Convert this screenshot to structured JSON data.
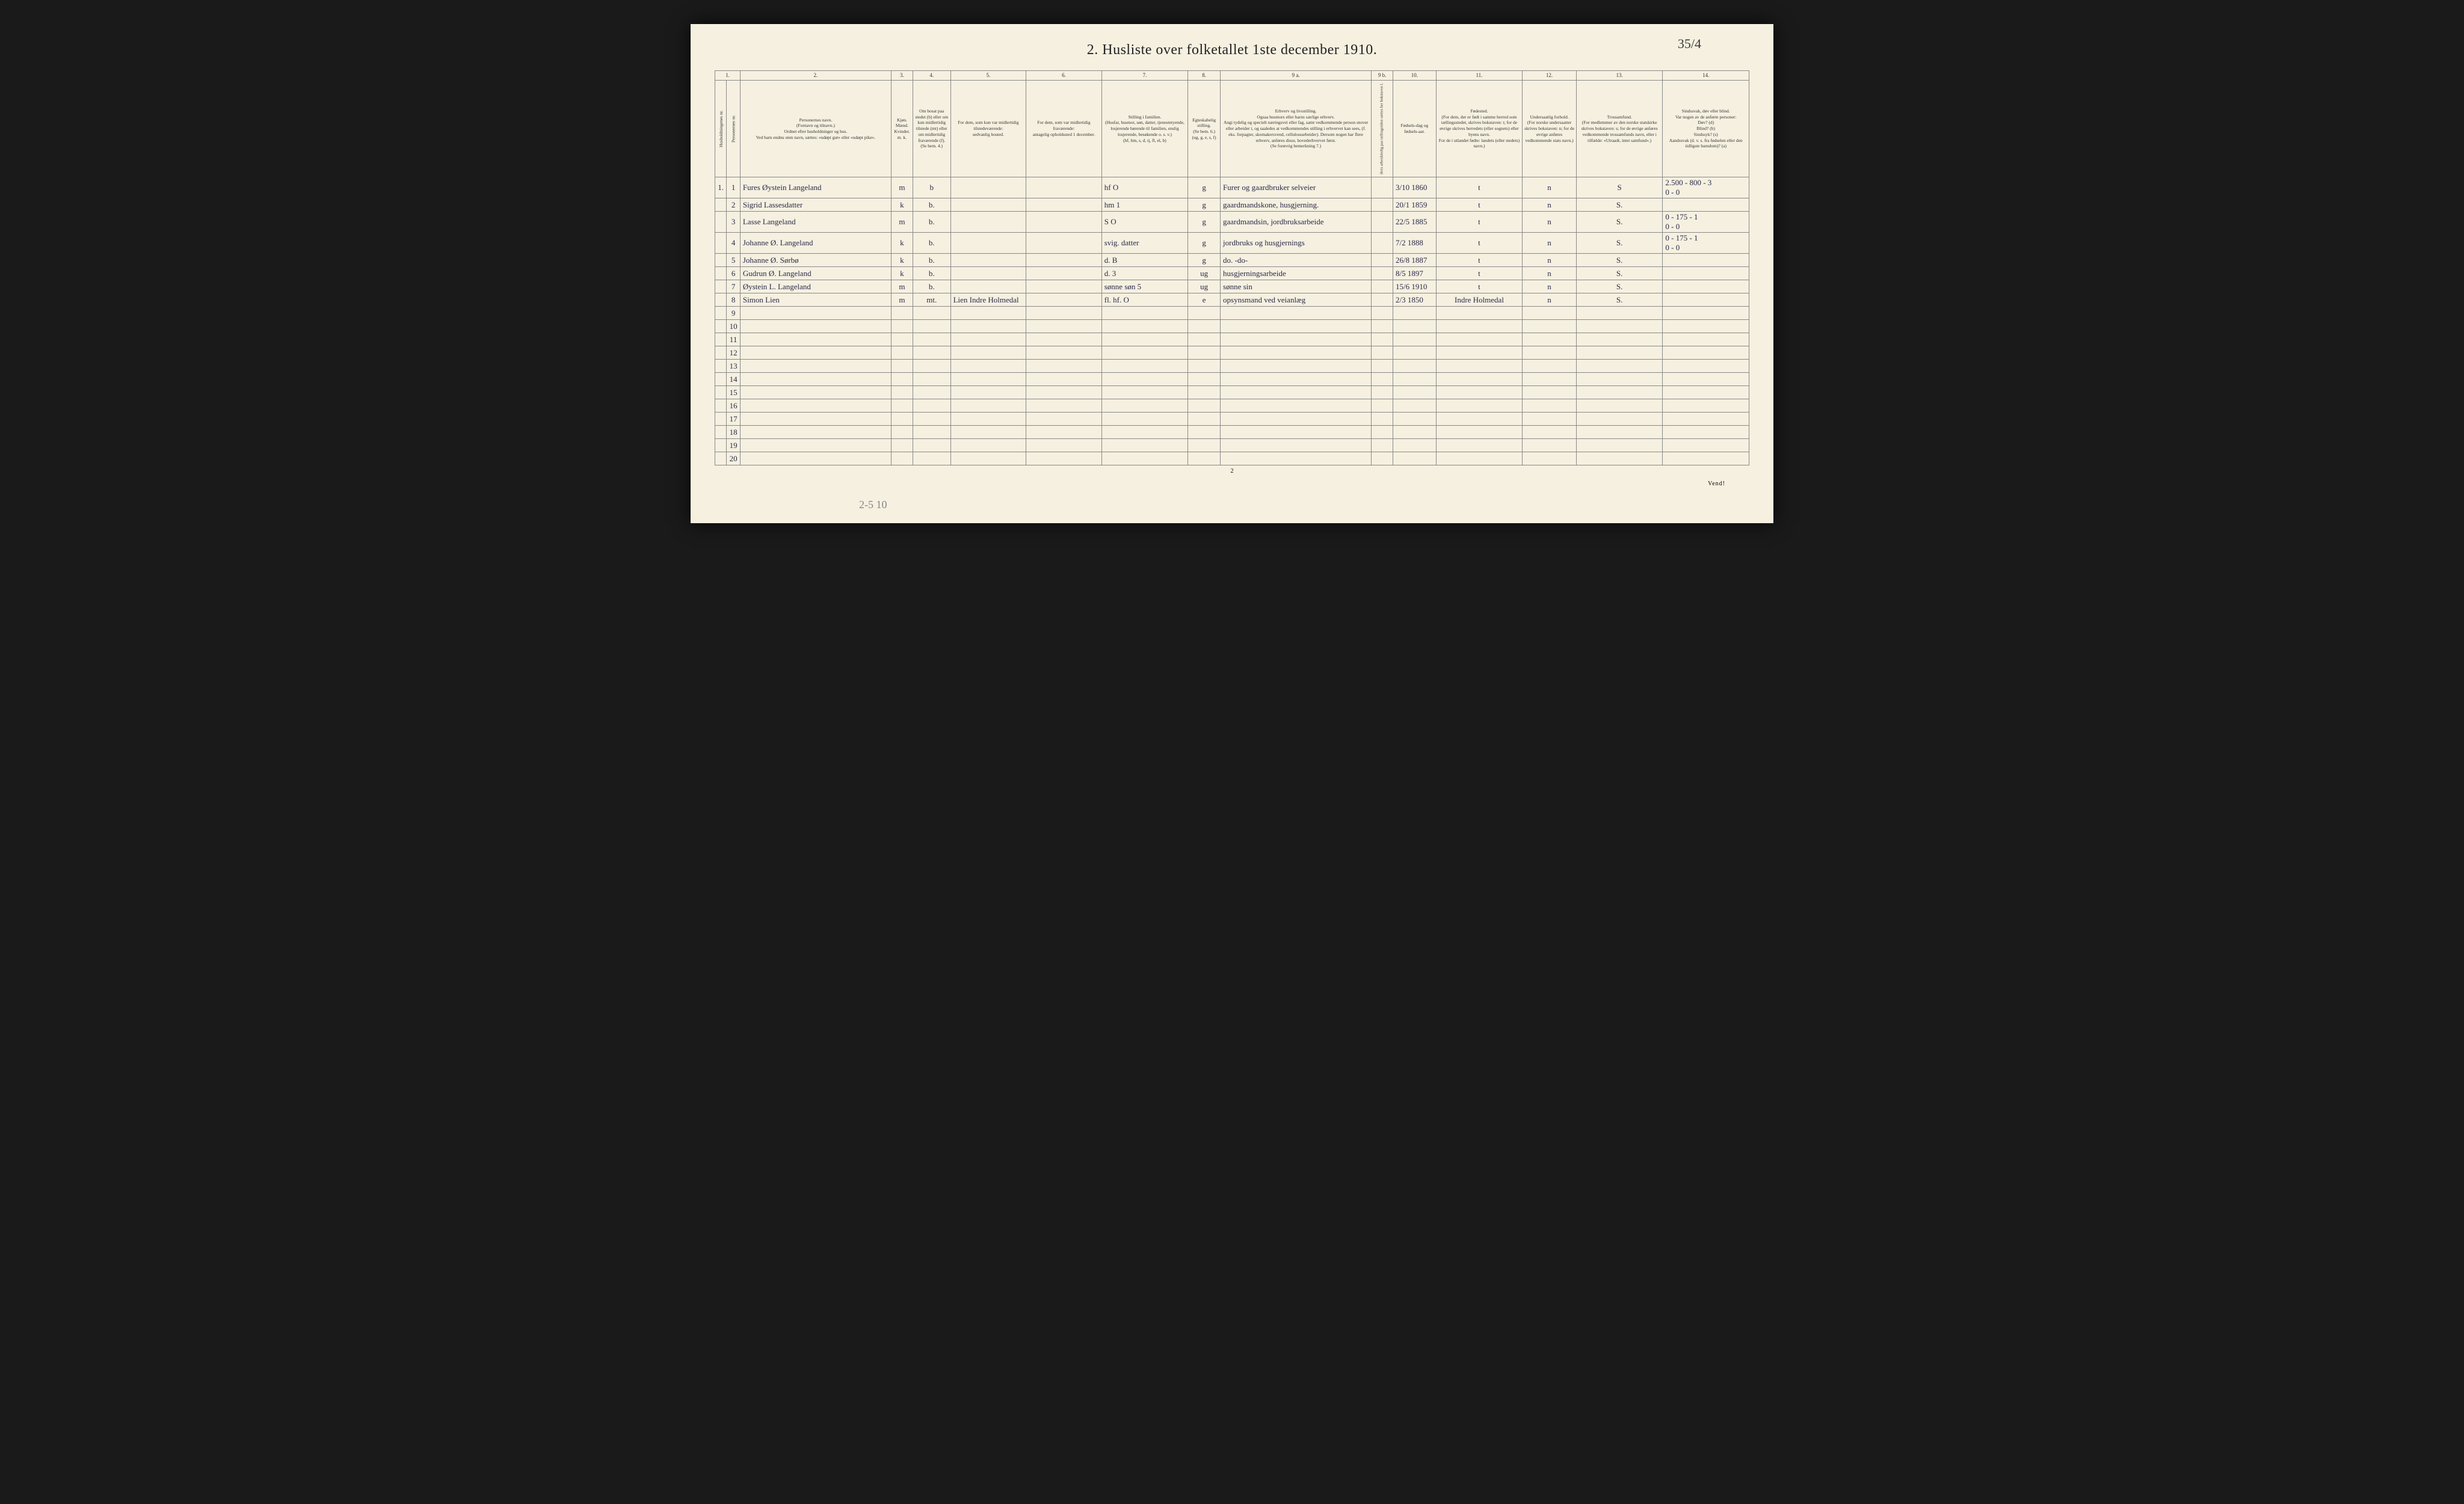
{
  "title": "2.  Husliste over folketallet 1ste december 1910.",
  "pageAnnotation": "35/4",
  "pencilNote": "2-5    10",
  "bottomRight": "Vend!",
  "pageNumBottom": "2",
  "columnNumbers": [
    "1.",
    "2.",
    "3.",
    "4.",
    "5.",
    "6.",
    "7.",
    "8.",
    "9 a.",
    "9 b.",
    "10.",
    "11.",
    "12.",
    "13.",
    "14."
  ],
  "headers": {
    "c1": "Husholdningenes nr.",
    "c1b": "Personernes nr.",
    "c2": "Personernes navn.\n(Fornavn og tilnavn.)\nOrdnet efter husholdninger og hus.\nVed barn endnu uten navn, sættes: «udøpt gut» eller «udøpt pike».",
    "c3": "Kjøn.\nMænd.\nKvinder.\nm.  k.",
    "c4": "Om bosat paa stedet (b) eller om kun midlertidig tilstede (mt) eller om midlertidig fraværende (f).\n(Se bem. 4.)",
    "c5": "For dem, som kun var midlertidig tilstedeværende:\nsedvanlig bosted.",
    "c6": "For dem, som var midlertidig fraværende:\nantagelig opholdssted 1 december.",
    "c7": "Stilling i familien.\n(Husfar, husmor, søn, datter, tjenestetyende, losjerende hørende til familien, enslig losjerende, besøkende o. s. v.)\n(hf, hm, s, d, tj, fl, el, b)",
    "c8": "Egteskabelig stilling.\n(Se bem. 6.)\n(ug, g, e, s, f)",
    "c9a": "Erhverv og livsstilling.\nOgsaa husmors eller barns særlige erhverv.\nAngi tydelig og specielt næringsvei eller fag, samt vedkommende person utover eller arbeider i, og saaledes at vedkommendes stilling i erhvervet kan sees, (f. eks. forpagter, skomakersvend, cellulosearbeider). Dersom nogen har flere erhverv, anføres disse, hovederhvervet først.\n(Se forøvrig bemerkning 7.)",
    "c9b": "Hvis arbeidsledig paa tællingstiden sættes her bokstaven l.",
    "c10": "Fødsels-dag og fødsels-aar.",
    "c11": "Fødested.\n(For dem, der er født i samme herred som tællingsstedet, skrives bokstaven: t; for de øvrige skrives herredets (eller sognets) eller byens navn.\nFor de i utlandet fødte: landets (eller stedets) navn.)",
    "c12": "Undersaatlig forhold.\n(For norske undersaatter skrives bokstaven: n; for de øvrige anføres vedkommende stats navn.)",
    "c13": "Trossamfund.\n(For medlemmer av den norske statskirke skrives bokstaven: s; for de øvrige anføres vedkommende trossamfunds navn, eller i tilfælde: «Utraadt, intet samfund».)",
    "c14": "Sindssvak, døv eller blind.\nVar nogen av de anførte personer:\nDøv?     (d)\nBlind?   (b)\nSindssyk? (s)\nAandssvak (d. v. s. fra fødselen eller den tidligste barndom)? (a)"
  },
  "rows": [
    {
      "hnr": "1.",
      "pnr": "1",
      "name": "Fures Øystein Langeland",
      "sex": "m",
      "res": "b",
      "away": "",
      "absent": "",
      "famrel": "hf     O",
      "mar": "g",
      "occ": "Furer og gaardbruker selveier",
      "led": "",
      "birth": "3/10 1860",
      "place": "t",
      "nat": "n",
      "rel": "S",
      "note": "2.500 - 800 - 3\n0 - 0"
    },
    {
      "hnr": "",
      "pnr": "2",
      "name": "Sigrid Lassesdatter",
      "sex": "k",
      "res": "b.",
      "away": "",
      "absent": "",
      "famrel": "hm   1",
      "mar": "g",
      "occ": "gaardmandskone, husgjerning.",
      "led": "",
      "birth": "20/1 1859",
      "place": "t",
      "nat": "n",
      "rel": "S.",
      "note": ""
    },
    {
      "hnr": "",
      "pnr": "3",
      "name": "Lasse Langeland",
      "sex": "m",
      "res": "b.",
      "away": "",
      "absent": "",
      "famrel": "S    O",
      "mar": "g",
      "occ": "gaardmandsin, jordbruksarbeide",
      "led": "",
      "birth": "22/5 1885",
      "place": "t",
      "nat": "n",
      "rel": "S.",
      "note": "0 - 175 - 1\n0 - 0"
    },
    {
      "hnr": "",
      "pnr": "4",
      "name": "Johanne Ø. Langeland",
      "sex": "k",
      "res": "b.",
      "away": "",
      "absent": "",
      "famrel": "svig. datter",
      "mar": "g",
      "occ": "jordbruks og husgjernings",
      "led": "",
      "birth": "7/2 1888",
      "place": "t",
      "nat": "n",
      "rel": "S.",
      "note": "0 - 175 - 1\n0 - 0"
    },
    {
      "hnr": "",
      "pnr": "5",
      "name": "Johanne Ø. Sørbø",
      "sex": "k",
      "res": "b.",
      "away": "",
      "absent": "",
      "famrel": "d.   B",
      "mar": "g",
      "occ": "do.      -do-",
      "led": "",
      "birth": "26/8 1887",
      "place": "t",
      "nat": "n",
      "rel": "S.",
      "note": ""
    },
    {
      "hnr": "",
      "pnr": "6",
      "name": "Gudrun Ø. Langeland",
      "sex": "k",
      "res": "b.",
      "away": "",
      "absent": "",
      "famrel": "d.   3",
      "mar": "ug",
      "occ": "husgjerningsarbeide",
      "led": "",
      "birth": "8/5 1897",
      "place": "t",
      "nat": "n",
      "rel": "S.",
      "note": ""
    },
    {
      "hnr": "",
      "pnr": "7",
      "name": "Øystein L. Langeland",
      "sex": "m",
      "res": "b.",
      "away": "",
      "absent": "",
      "famrel": "sønne søn 5",
      "mar": "ug",
      "occ": "sønne sin",
      "led": "",
      "birth": "15/6 1910",
      "place": "t",
      "nat": "n",
      "rel": "S.",
      "note": ""
    },
    {
      "hnr": "",
      "pnr": "8",
      "name": "Simon Lien",
      "sex": "m",
      "res": "mt.",
      "away": "Lien Indre Holmedal",
      "absent": "",
      "famrel": "fl. hf.  O",
      "mar": "e",
      "occ": "opsynsmand ved veianlæg",
      "led": "",
      "birth": "2/3 1850",
      "place": "Indre Holmedal",
      "nat": "n",
      "rel": "S.",
      "note": ""
    }
  ],
  "emptyRowNumbers": [
    "9",
    "10",
    "11",
    "12",
    "13",
    "14",
    "15",
    "16",
    "17",
    "18",
    "19",
    "20"
  ]
}
